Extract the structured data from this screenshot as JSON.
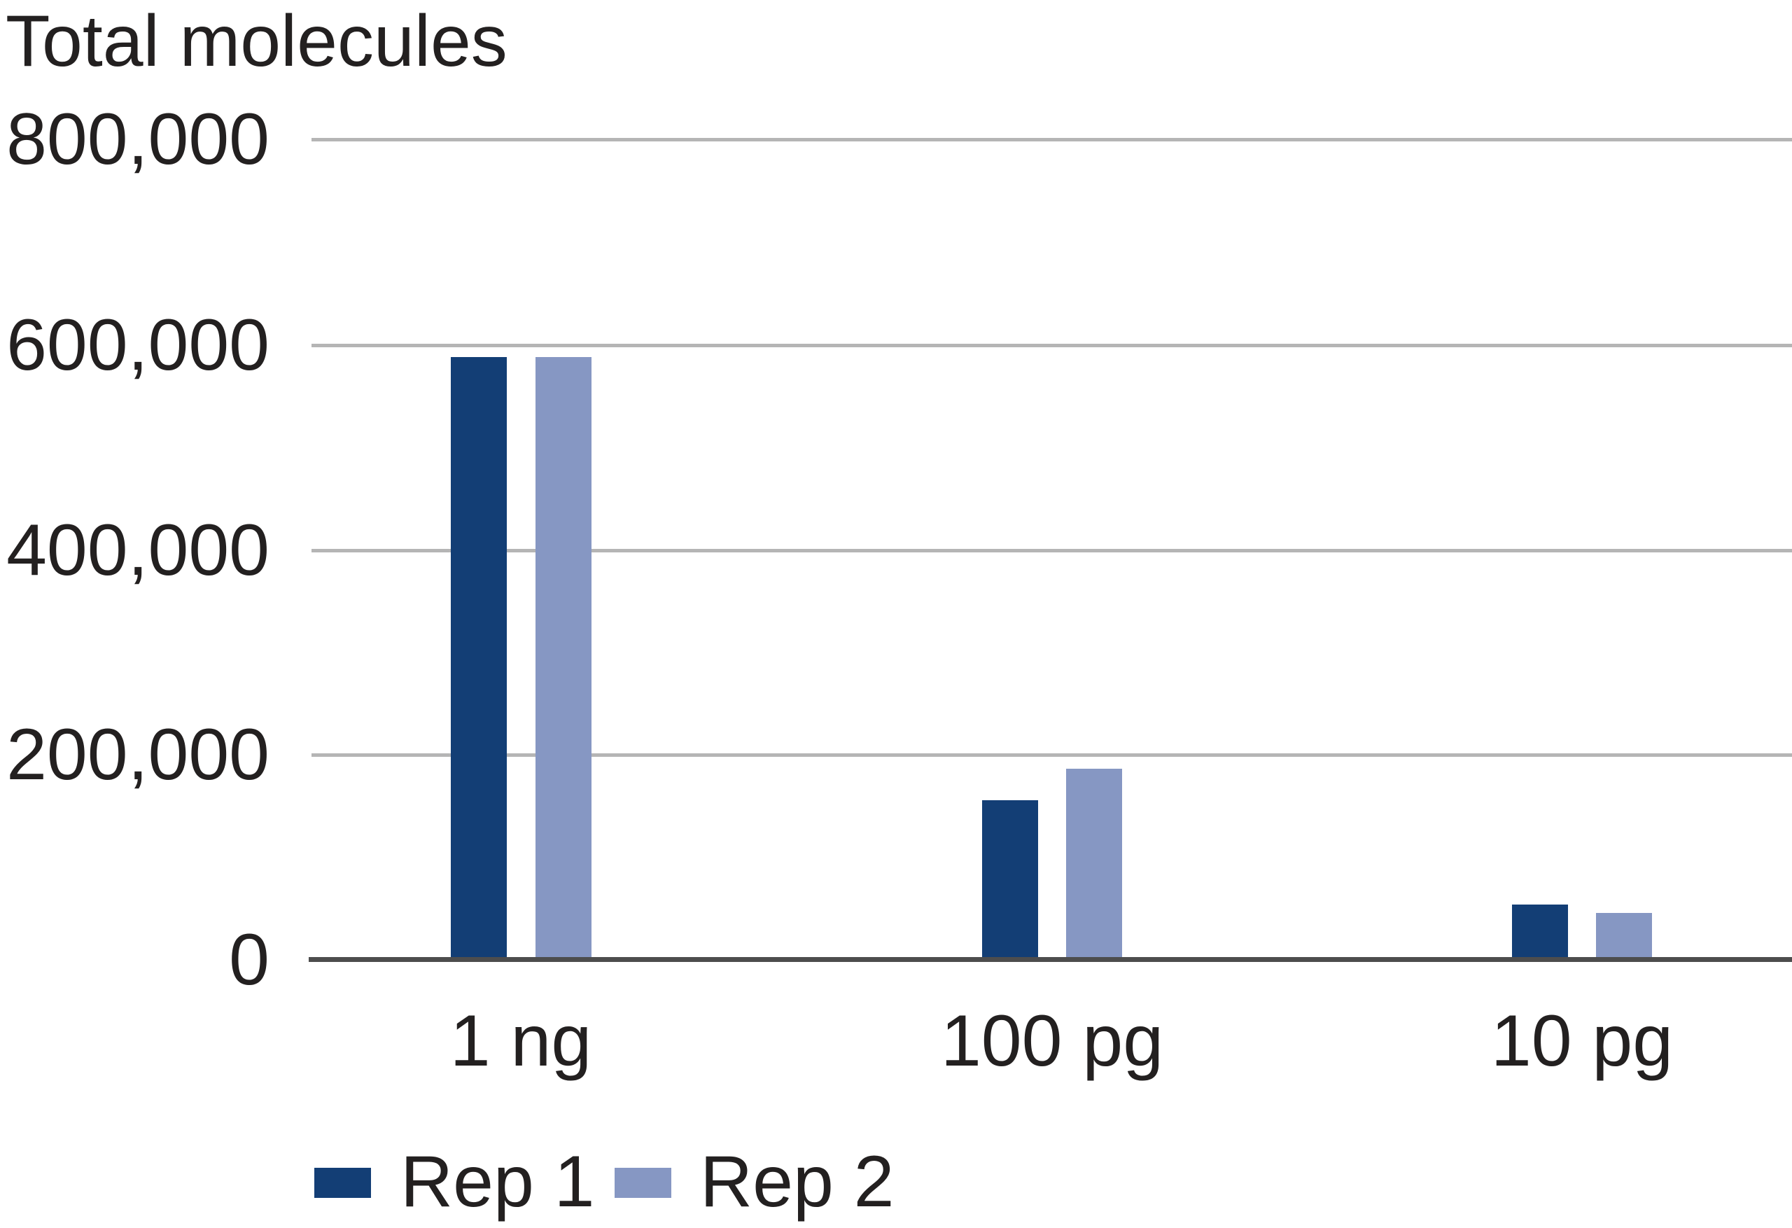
{
  "title": "Total molecules",
  "colors": {
    "rep1": "#133e75",
    "rep2": "#8697c3",
    "gridline": "#b5b5b5",
    "axis": "#4d4d4d",
    "text": "#232020"
  },
  "chart_data": {
    "type": "bar",
    "title": "Total molecules",
    "categories": [
      "1 ng",
      "100 pg",
      "10 pg"
    ],
    "series": [
      {
        "name": "Rep 1",
        "color": "#133e75",
        "values": [
          587000,
          155000,
          53000
        ]
      },
      {
        "name": "Rep 2",
        "color": "#8697c3",
        "values": [
          587000,
          186000,
          45000
        ]
      }
    ],
    "ylabel": "Total molecules",
    "ylim": [
      0,
      800000
    ],
    "ytick_interval": 200000,
    "yticks": [
      "800,000",
      "600,000",
      "400,000",
      "200,000",
      "0"
    ],
    "grid": true,
    "legend_position": "bottom-left"
  },
  "legend": {
    "items": [
      {
        "label": "Rep 1"
      },
      {
        "label": "Rep 2"
      }
    ]
  }
}
